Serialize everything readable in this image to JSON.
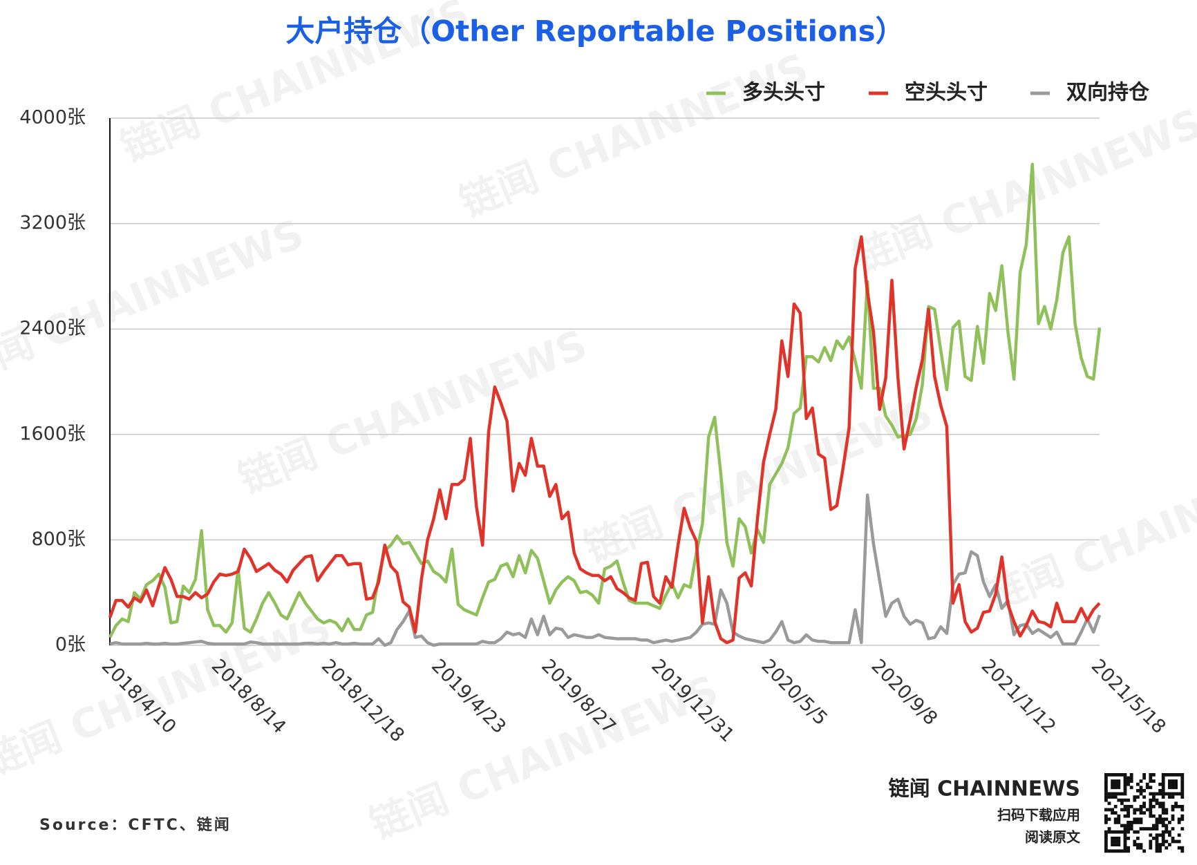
{
  "chart_data": {
    "type": "line",
    "title": "大户持仓（Other Reportable Positions）",
    "categories": [
      "2018/4/10",
      null,
      null,
      null,
      null,
      null,
      null,
      null,
      null,
      null,
      null,
      null,
      null,
      null,
      null,
      null,
      null,
      null,
      "2018/8/14",
      null,
      null,
      null,
      null,
      null,
      null,
      null,
      null,
      null,
      null,
      null,
      null,
      null,
      null,
      null,
      null,
      null,
      "2018/12/18",
      null,
      null,
      null,
      null,
      null,
      null,
      null,
      null,
      null,
      null,
      null,
      null,
      null,
      null,
      null,
      null,
      null,
      "2019/4/23",
      null,
      null,
      null,
      null,
      null,
      null,
      null,
      null,
      null,
      null,
      null,
      null,
      null,
      null,
      null,
      null,
      null,
      "2019/8/27",
      null,
      null,
      null,
      null,
      null,
      null,
      null,
      null,
      null,
      null,
      null,
      null,
      null,
      null,
      null,
      null,
      null,
      "2019/12/31",
      null,
      null,
      null,
      null,
      null,
      null,
      null,
      null,
      null,
      null,
      null,
      null,
      null,
      null,
      null,
      null,
      null,
      "2020/5/5",
      null,
      null,
      null,
      null,
      null,
      null,
      null,
      null,
      null,
      null,
      null,
      null,
      null,
      null,
      null,
      null,
      null,
      "2020/9/8",
      null,
      null,
      null,
      null,
      null,
      null,
      null,
      null,
      null,
      null,
      null,
      null,
      null,
      null,
      null,
      null,
      null,
      "2021/1/12",
      null,
      null,
      null,
      null,
      null,
      null,
      null,
      null,
      null,
      null,
      null,
      null,
      null,
      null,
      null,
      null,
      null,
      "2021/5/18"
    ],
    "series": [
      {
        "name": "多头头寸",
        "color": "#8fc05a",
        "values": [
          60,
          150,
          200,
          180,
          400,
          350,
          460,
          490,
          540,
          440,
          170,
          180,
          450,
          400,
          500,
          870,
          270,
          150,
          150,
          100,
          170,
          580,
          130,
          100,
          200,
          320,
          400,
          320,
          230,
          200,
          300,
          400,
          320,
          260,
          200,
          170,
          190,
          170,
          110,
          200,
          120,
          120,
          230,
          250,
          520,
          720,
          760,
          830,
          770,
          780,
          700,
          620,
          640,
          560,
          530,
          480,
          730,
          310,
          270,
          250,
          230,
          360,
          480,
          500,
          600,
          620,
          520,
          680,
          550,
          720,
          660,
          490,
          320,
          420,
          480,
          520,
          490,
          400,
          410,
          380,
          320,
          580,
          600,
          640,
          480,
          340,
          320,
          320,
          320,
          300,
          280,
          380,
          470,
          360,
          460,
          440,
          700,
          920,
          1580,
          1730,
          1300,
          780,
          600,
          960,
          900,
          700,
          880,
          780,
          1220,
          1300,
          1380,
          1500,
          1760,
          1800,
          2190,
          2190,
          2150,
          2260,
          2160,
          2310,
          2250,
          2340,
          2160,
          1950,
          2760,
          1950,
          1950,
          1740,
          1670,
          1580,
          1590,
          1600,
          1720,
          1980,
          2570,
          2550,
          2240,
          1940,
          2410,
          2460,
          2040,
          2010,
          2420,
          2140,
          2670,
          2540,
          2880,
          2380,
          2020,
          2830,
          3040,
          3650,
          2440,
          2570,
          2400,
          2620,
          2980,
          3100,
          2440,
          2180,
          2040,
          2020,
          2410
        ]
      },
      {
        "name": "空头头寸",
        "color": "#e0332a",
        "values": [
          210,
          340,
          340,
          290,
          360,
          330,
          420,
          300,
          450,
          590,
          500,
          370,
          370,
          350,
          400,
          360,
          390,
          480,
          540,
          530,
          540,
          560,
          730,
          660,
          560,
          590,
          620,
          570,
          540,
          480,
          570,
          620,
          670,
          680,
          490,
          560,
          620,
          680,
          680,
          610,
          620,
          620,
          350,
          360,
          480,
          760,
          600,
          550,
          330,
          290,
          100,
          500,
          800,
          960,
          1180,
          960,
          1220,
          1220,
          1260,
          1570,
          1050,
          760,
          1620,
          1960,
          1840,
          1700,
          1170,
          1380,
          1290,
          1570,
          1360,
          1360,
          1130,
          1220,
          960,
          1010,
          700,
          580,
          550,
          530,
          530,
          490,
          520,
          430,
          400,
          360,
          340,
          620,
          630,
          370,
          320,
          520,
          440,
          760,
          1040,
          890,
          790,
          170,
          520,
          180,
          50,
          20,
          40,
          510,
          550,
          450,
          960,
          1390,
          1600,
          1790,
          2310,
          2040,
          2590,
          2520,
          1720,
          1800,
          1450,
          1420,
          1030,
          1060,
          1340,
          1650,
          2860,
          3100,
          2680,
          2380,
          1790,
          2030,
          2770,
          2030,
          1490,
          1710,
          1960,
          2170,
          2550,
          2040,
          1820,
          1660,
          320,
          460,
          180,
          100,
          130,
          250,
          260,
          390,
          670,
          310,
          180,
          70,
          150,
          260,
          180,
          170,
          140,
          320,
          180,
          180,
          180,
          280,
          190,
          270,
          320
        ]
      },
      {
        "name": "双向持仓",
        "color": "#9a9a9a",
        "values": [
          10,
          20,
          10,
          10,
          10,
          10,
          15,
          10,
          10,
          15,
          10,
          10,
          15,
          20,
          25,
          30,
          15,
          10,
          10,
          10,
          10,
          10,
          10,
          25,
          20,
          10,
          10,
          10,
          10,
          10,
          10,
          10,
          15,
          15,
          10,
          15,
          10,
          20,
          10,
          10,
          15,
          10,
          10,
          10,
          50,
          0,
          20,
          120,
          180,
          260,
          60,
          70,
          20,
          0,
          10,
          10,
          10,
          10,
          10,
          10,
          10,
          30,
          20,
          20,
          50,
          100,
          80,
          90,
          60,
          200,
          80,
          220,
          80,
          130,
          120,
          60,
          80,
          70,
          60,
          60,
          80,
          60,
          55,
          50,
          50,
          50,
          50,
          40,
          40,
          20,
          30,
          40,
          30,
          40,
          50,
          60,
          100,
          160,
          170,
          160,
          420,
          320,
          100,
          70,
          50,
          40,
          30,
          20,
          40,
          100,
          180,
          40,
          20,
          30,
          80,
          40,
          30,
          30,
          20,
          20,
          20,
          20,
          270,
          20,
          1140,
          770,
          490,
          220,
          320,
          350,
          220,
          160,
          190,
          170,
          50,
          60,
          140,
          90,
          460,
          540,
          550,
          710,
          680,
          480,
          370,
          460,
          280,
          340,
          80,
          150,
          160,
          90,
          120,
          90,
          60,
          100,
          10,
          10,
          10,
          100,
          200,
          100,
          230
        ]
      }
    ],
    "ylim": [
      0,
      4000
    ],
    "yticks": [
      {
        "value": 0,
        "label": "0张"
      },
      {
        "value": 800,
        "label": "800张"
      },
      {
        "value": 1600,
        "label": "1600张"
      },
      {
        "value": 2400,
        "label": "2400张"
      },
      {
        "value": 3200,
        "label": "3200张"
      },
      {
        "value": 4000,
        "label": "4000张"
      }
    ],
    "grid": true,
    "legend": "top-right",
    "source": "Source：CFTC、链闻",
    "watermark": "链闻 CHAINNEWS",
    "brand": "链闻 CHAINNEWS",
    "brand_line1": "扫码下载应用",
    "brand_line2": "阅读原文"
  }
}
